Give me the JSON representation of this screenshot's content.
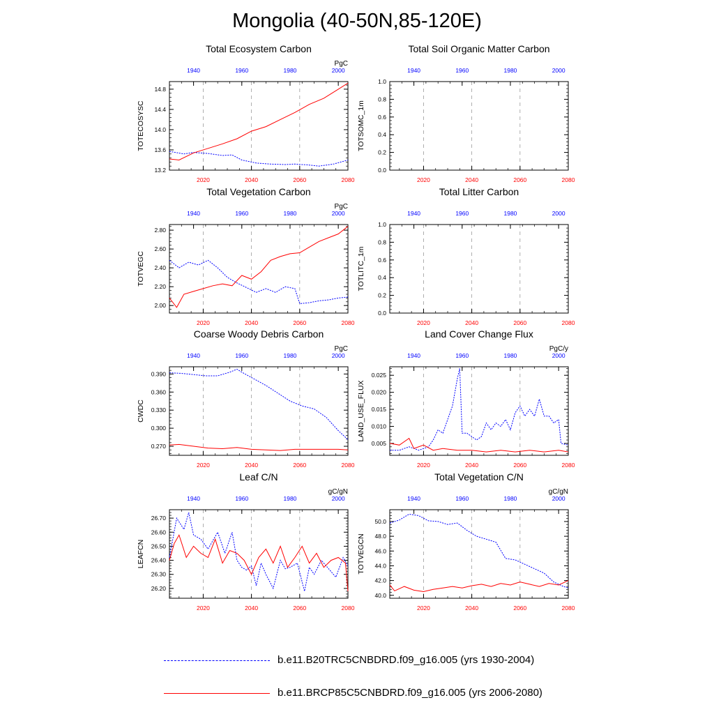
{
  "figure": {
    "title": "Mongolia (40-50N,85-120E)",
    "colors": {
      "hist": "#0000ff",
      "future": "#ff0000",
      "axis": "#000000",
      "refline": "#999999"
    },
    "top_axis_ticks": [
      "1940",
      "1960",
      "1980",
      "2000"
    ],
    "bottom_axis_ticks": [
      "2020",
      "2040",
      "2060",
      "2080"
    ]
  },
  "legend": {
    "items": [
      {
        "label": "b.e11.B20TRC5CNBDRD.f09_g16.005 (yrs 1930-2004)",
        "color": "#0000ff",
        "style": "dashed"
      },
      {
        "label": "b.e11.BRCP85C5CNBDRD.f09_g16.005 (yrs 2006-2080)",
        "color": "#ff0000",
        "style": "solid"
      }
    ]
  },
  "chart_data": [
    {
      "type": "line",
      "title": "Total Ecosystem Carbon",
      "ylabel": "TOTECOSYSC",
      "units": "PgC",
      "ylim": [
        13.2,
        14.95
      ],
      "yticks": [
        13.2,
        13.6,
        14.0,
        14.4,
        14.8
      ],
      "ytick_decimals": 1,
      "x_bottom_range": [
        2006,
        2080
      ],
      "x_top_range": [
        1930,
        2004
      ],
      "series": [
        {
          "name": "b.e11.B20TRC5CNBDRD.f09_g16.005",
          "axis": "top",
          "style": "dashed",
          "x": [
            1930,
            1936,
            1940,
            1946,
            1952,
            1956,
            1960,
            1966,
            1972,
            1978,
            1982,
            1988,
            1992,
            1998,
            2004
          ],
          "y": [
            13.57,
            13.52,
            13.55,
            13.53,
            13.49,
            13.5,
            13.4,
            13.34,
            13.32,
            13.31,
            13.32,
            13.3,
            13.28,
            13.32,
            13.4
          ]
        },
        {
          "name": "b.e11.BRCP85C5CNBDRD.f09_g16.005",
          "axis": "bottom",
          "style": "solid",
          "x": [
            2006,
            2010,
            2016,
            2022,
            2028,
            2034,
            2040,
            2046,
            2052,
            2058,
            2064,
            2070,
            2076,
            2080
          ],
          "y": [
            13.42,
            13.4,
            13.54,
            13.63,
            13.72,
            13.82,
            13.97,
            14.06,
            14.2,
            14.34,
            14.5,
            14.62,
            14.8,
            14.92
          ]
        }
      ]
    },
    {
      "type": "line",
      "title": "Total Soil Organic Matter Carbon",
      "ylabel": "TOTSOMC_1m",
      "units": "",
      "ylim": [
        0,
        1
      ],
      "yticks": [
        0.0,
        0.2,
        0.4,
        0.6,
        0.8,
        1.0
      ],
      "ytick_decimals": 1,
      "x_bottom_range": [
        2006,
        2080
      ],
      "x_top_range": [
        1930,
        2004
      ],
      "series": []
    },
    {
      "type": "line",
      "title": "Total Vegetation Carbon",
      "ylabel": "TOTVEGC",
      "units": "PgC",
      "ylim": [
        1.92,
        2.86
      ],
      "yticks": [
        2.0,
        2.2,
        2.4,
        2.6,
        2.8
      ],
      "ytick_decimals": 2,
      "x_bottom_range": [
        2006,
        2080
      ],
      "x_top_range": [
        1930,
        2004
      ],
      "series": [
        {
          "name": "b.e11.B20TRC5CNBDRD.f09_g16.005",
          "axis": "top",
          "style": "dashed",
          "x": [
            1930,
            1934,
            1938,
            1942,
            1946,
            1950,
            1954,
            1958,
            1962,
            1966,
            1970,
            1974,
            1978,
            1982,
            1984,
            1988,
            1992,
            1996,
            2000,
            2004
          ],
          "y": [
            2.48,
            2.4,
            2.46,
            2.43,
            2.48,
            2.4,
            2.3,
            2.24,
            2.19,
            2.14,
            2.18,
            2.14,
            2.2,
            2.18,
            2.02,
            2.03,
            2.05,
            2.06,
            2.08,
            2.09
          ]
        },
        {
          "name": "b.e11.BRCP85C5CNBDRD.f09_g16.005",
          "axis": "bottom",
          "style": "solid",
          "x": [
            2006,
            2009,
            2012,
            2016,
            2020,
            2024,
            2028,
            2032,
            2036,
            2040,
            2044,
            2048,
            2052,
            2056,
            2060,
            2064,
            2068,
            2072,
            2076,
            2080
          ],
          "y": [
            2.08,
            1.98,
            2.12,
            2.15,
            2.18,
            2.21,
            2.23,
            2.21,
            2.32,
            2.28,
            2.36,
            2.48,
            2.52,
            2.55,
            2.56,
            2.62,
            2.68,
            2.72,
            2.76,
            2.84
          ]
        }
      ]
    },
    {
      "type": "line",
      "title": "Total Litter Carbon",
      "ylabel": "TOTLITC_1m",
      "units": "",
      "ylim": [
        0,
        1
      ],
      "yticks": [
        0.0,
        0.2,
        0.4,
        0.6,
        0.8,
        1.0
      ],
      "ytick_decimals": 1,
      "x_bottom_range": [
        2006,
        2080
      ],
      "x_top_range": [
        1930,
        2004
      ],
      "series": []
    },
    {
      "type": "line",
      "title": "Coarse Woody Debris Carbon",
      "ylabel": "CWDC",
      "units": "PgC",
      "ylim": [
        0.255,
        0.402
      ],
      "yticks": [
        0.27,
        0.3,
        0.33,
        0.36,
        0.39
      ],
      "ytick_decimals": 3,
      "x_bottom_range": [
        2006,
        2080
      ],
      "x_top_range": [
        1930,
        2004
      ],
      "series": [
        {
          "name": "b.e11.B20TRC5CNBDRD.f09_g16.005",
          "axis": "top",
          "style": "dashed",
          "x": [
            1930,
            1935,
            1940,
            1945,
            1950,
            1955,
            1958,
            1960,
            1965,
            1970,
            1975,
            1980,
            1985,
            1990,
            1995,
            2000,
            2004
          ],
          "y": [
            0.392,
            0.391,
            0.389,
            0.387,
            0.387,
            0.393,
            0.398,
            0.393,
            0.382,
            0.371,
            0.358,
            0.345,
            0.337,
            0.332,
            0.318,
            0.296,
            0.281
          ]
        },
        {
          "name": "b.e11.BRCP85C5CNBDRD.f09_g16.005",
          "axis": "bottom",
          "style": "solid",
          "x": [
            2006,
            2010,
            2016,
            2022,
            2028,
            2034,
            2040,
            2046,
            2052,
            2058,
            2064,
            2070,
            2076,
            2080
          ],
          "y": [
            0.272,
            0.273,
            0.27,
            0.267,
            0.266,
            0.268,
            0.265,
            0.264,
            0.263,
            0.265,
            0.265,
            0.265,
            0.265,
            0.264
          ]
        }
      ]
    },
    {
      "type": "line",
      "title": "Land Cover Change Flux",
      "ylabel": "LAND_USE_FLUX",
      "units": "PgC/y",
      "ylim": [
        0.0015,
        0.0275
      ],
      "yticks": [
        0.005,
        0.01,
        0.015,
        0.02,
        0.025
      ],
      "ytick_decimals": 3,
      "x_bottom_range": [
        2006,
        2080
      ],
      "x_top_range": [
        1930,
        2004
      ],
      "series": [
        {
          "name": "b.e11.B20TRC5CNBDRD.f09_g16.005",
          "axis": "top",
          "style": "dashed",
          "x": [
            1930,
            1934,
            1938,
            1942,
            1946,
            1948,
            1950,
            1952,
            1954,
            1956,
            1958,
            1959,
            1960,
            1962,
            1964,
            1966,
            1968,
            1970,
            1972,
            1974,
            1976,
            1978,
            1980,
            1982,
            1984,
            1986,
            1988,
            1990,
            1992,
            1994,
            1996,
            1998,
            2000,
            2001,
            2004
          ],
          "y": [
            0.003,
            0.003,
            0.004,
            0.003,
            0.004,
            0.006,
            0.009,
            0.008,
            0.012,
            0.016,
            0.024,
            0.027,
            0.008,
            0.008,
            0.007,
            0.006,
            0.007,
            0.011,
            0.009,
            0.011,
            0.01,
            0.012,
            0.009,
            0.014,
            0.016,
            0.013,
            0.015,
            0.013,
            0.018,
            0.013,
            0.013,
            0.011,
            0.012,
            0.005,
            0.0045
          ]
        },
        {
          "name": "b.e11.BRCP85C5CNBDRD.f09_g16.005",
          "axis": "bottom",
          "style": "solid",
          "x": [
            2006,
            2010,
            2014,
            2016,
            2020,
            2024,
            2028,
            2034,
            2040,
            2046,
            2052,
            2058,
            2064,
            2070,
            2076,
            2080
          ],
          "y": [
            0.005,
            0.0045,
            0.0065,
            0.0035,
            0.0045,
            0.003,
            0.0035,
            0.003,
            0.003,
            0.0025,
            0.003,
            0.0025,
            0.003,
            0.0025,
            0.003,
            0.0025
          ]
        }
      ]
    },
    {
      "type": "line",
      "title": "Leaf C/N",
      "ylabel": "LEAFCN",
      "units": "gC/gN",
      "ylim": [
        26.13,
        26.76
      ],
      "yticks": [
        26.2,
        26.3,
        26.4,
        26.5,
        26.6,
        26.7
      ],
      "ytick_decimals": 2,
      "x_bottom_range": [
        2006,
        2080
      ],
      "x_top_range": [
        1930,
        2004
      ],
      "series": [
        {
          "name": "b.e11.B20TRC5CNBDRD.f09_g16.005",
          "axis": "top",
          "style": "dashed",
          "x": [
            1930,
            1933,
            1936,
            1938,
            1940,
            1943,
            1946,
            1950,
            1953,
            1956,
            1958,
            1960,
            1962,
            1964,
            1966,
            1968,
            1970,
            1973,
            1976,
            1978,
            1980,
            1983,
            1986,
            1988,
            1990,
            1993,
            1996,
            1999,
            2002,
            2004
          ],
          "y": [
            26.42,
            26.7,
            26.62,
            26.74,
            26.58,
            26.55,
            26.48,
            26.6,
            26.45,
            26.6,
            26.4,
            26.35,
            26.33,
            26.36,
            26.22,
            26.38,
            26.3,
            26.2,
            26.4,
            26.34,
            26.35,
            26.38,
            26.18,
            26.35,
            26.3,
            26.4,
            26.34,
            26.28,
            26.42,
            26.36
          ]
        },
        {
          "name": "b.e11.BRCP85C5CNBDRD.f09_g16.005",
          "axis": "bottom",
          "style": "solid",
          "x": [
            2006,
            2008,
            2010,
            2013,
            2016,
            2019,
            2022,
            2025,
            2028,
            2031,
            2034,
            2037,
            2040,
            2043,
            2046,
            2049,
            2052,
            2055,
            2058,
            2061,
            2064,
            2067,
            2070,
            2073,
            2076,
            2079,
            2080
          ],
          "y": [
            26.4,
            26.52,
            26.58,
            26.42,
            26.5,
            26.45,
            26.42,
            26.55,
            26.38,
            26.47,
            26.45,
            26.4,
            26.3,
            26.42,
            26.48,
            26.38,
            26.5,
            26.35,
            26.42,
            26.5,
            26.38,
            26.45,
            26.35,
            26.4,
            26.42,
            26.38,
            26.18
          ]
        }
      ]
    },
    {
      "type": "line",
      "title": "Total Vegetation C/N",
      "ylabel": "TOTVEGCN",
      "units": "gC/gN",
      "ylim": [
        39.6,
        51.6
      ],
      "yticks": [
        40.0,
        42.0,
        44.0,
        46.0,
        48.0,
        50.0
      ],
      "ytick_decimals": 1,
      "x_bottom_range": [
        2006,
        2080
      ],
      "x_top_range": [
        1930,
        2004
      ],
      "series": [
        {
          "name": "b.e11.B20TRC5CNBDRD.f09_g16.005",
          "axis": "top",
          "style": "dashed",
          "x": [
            1930,
            1934,
            1938,
            1942,
            1946,
            1950,
            1954,
            1958,
            1962,
            1966,
            1970,
            1974,
            1978,
            1982,
            1986,
            1990,
            1994,
            1998,
            2002,
            2004
          ],
          "y": [
            49.8,
            50.2,
            51.0,
            50.8,
            50.1,
            50.0,
            49.6,
            49.8,
            48.8,
            48.0,
            47.6,
            47.2,
            45.0,
            44.8,
            44.2,
            43.6,
            43.0,
            41.8,
            41.2,
            41.0
          ]
        },
        {
          "name": "b.e11.BRCP85C5CNBDRD.f09_g16.005",
          "axis": "bottom",
          "style": "solid",
          "x": [
            2006,
            2008,
            2012,
            2016,
            2020,
            2024,
            2028,
            2032,
            2036,
            2040,
            2044,
            2048,
            2052,
            2056,
            2060,
            2064,
            2068,
            2072,
            2076,
            2080
          ],
          "y": [
            41.4,
            40.6,
            41.2,
            40.7,
            40.5,
            40.8,
            41.0,
            41.2,
            41.0,
            41.3,
            41.5,
            41.2,
            41.6,
            41.4,
            41.8,
            41.5,
            41.2,
            41.6,
            41.4,
            42.0
          ]
        }
      ]
    }
  ]
}
